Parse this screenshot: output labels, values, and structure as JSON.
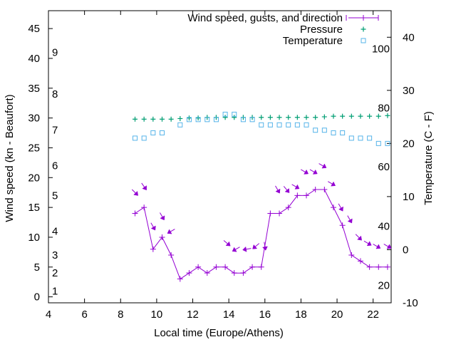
{
  "chart_data": {
    "type": "line",
    "xlabel": "Local time (Europe/Athens)",
    "ylabel": "Wind speed (kn - Beaufort)",
    "y2label": "Temperature (C - F)",
    "xlim": [
      4,
      23
    ],
    "ylim": [
      -1,
      48
    ],
    "y2lim": [
      -10,
      45
    ],
    "x_ticks": [
      4,
      6,
      8,
      10,
      12,
      14,
      16,
      18,
      20,
      22
    ],
    "y_ticks": [
      0,
      5,
      10,
      15,
      20,
      25,
      30,
      35,
      40,
      45
    ],
    "y2_ticks": [
      -10,
      0,
      10,
      20,
      30,
      40
    ],
    "beaufort_labels": [
      {
        "label": "1",
        "kn": 1
      },
      {
        "label": "2",
        "kn": 4
      },
      {
        "label": "3",
        "kn": 7
      },
      {
        "label": "4",
        "kn": 11
      },
      {
        "label": "5",
        "kn": 17
      },
      {
        "label": "6",
        "kn": 22
      },
      {
        "label": "7",
        "kn": 28
      },
      {
        "label": "8",
        "kn": 34
      },
      {
        "label": "9",
        "kn": 41
      }
    ],
    "fahrenheit_labels": [
      {
        "label": "20",
        "c": -6.7
      },
      {
        "label": "40",
        "c": 4.4
      },
      {
        "label": "60",
        "c": 15.6
      },
      {
        "label": "80",
        "c": 26.7
      },
      {
        "label": "100",
        "c": 37.8
      }
    ],
    "legend": [
      "Wind speed, gusts, and direction",
      "Pressure",
      "Temperature"
    ],
    "legend_position": "top-right",
    "grid": false,
    "colors": {
      "wind": "#9400d3",
      "pressure": "#009e73",
      "temperature": "#56b4e9"
    },
    "series": [
      {
        "name": "Wind speed, gusts, and direction",
        "type": "line",
        "axis": "y",
        "x": [
          8.8,
          9.3,
          9.8,
          10.3,
          10.8,
          11.3,
          11.8,
          12.3,
          12.8,
          13.3,
          13.8,
          14.3,
          14.8,
          15.3,
          15.8,
          16.3,
          16.8,
          17.3,
          17.8,
          18.3,
          18.8,
          19.3,
          19.8,
          20.3,
          20.8,
          21.3,
          21.8,
          22.3,
          22.8
        ],
        "values": [
          14,
          15,
          8,
          10,
          7,
          3,
          4,
          5,
          4,
          5,
          5,
          4,
          4,
          5,
          5,
          14,
          14,
          15,
          17,
          17,
          18,
          18,
          15,
          12,
          7,
          6,
          5,
          5,
          5
        ]
      },
      {
        "name": "Wind direction arrows",
        "type": "arrows",
        "axis": "y",
        "x": [
          8.8,
          9.3,
          9.8,
          10.3,
          10.8,
          13.9,
          14.4,
          15.0,
          15.5,
          16.0,
          16.7,
          17.2,
          17.7,
          18.2,
          18.7,
          19.2,
          19.7,
          20.2,
          20.7,
          21.2,
          21.7,
          22.2,
          22.8
        ],
        "values": [
          17.5,
          18.5,
          11.8,
          13.5,
          11,
          9,
          8,
          8,
          8.5,
          8.5,
          18,
          18,
          18.5,
          21,
          21,
          22,
          19,
          15,
          13,
          10,
          9,
          8.5,
          8.5
        ],
        "from_deg": [
          315,
          325,
          330,
          330,
          60,
          310,
          60,
          80,
          50,
          350,
          330,
          320,
          300,
          300,
          300,
          300,
          300,
          330,
          330,
          315,
          300,
          300,
          300
        ]
      },
      {
        "name": "Pressure",
        "type": "scatter",
        "axis": "y",
        "x": [
          8.8,
          9.3,
          9.8,
          10.3,
          10.8,
          11.3,
          11.8,
          12.3,
          12.8,
          13.3,
          13.8,
          14.3,
          14.8,
          15.3,
          15.8,
          16.3,
          16.8,
          17.3,
          17.8,
          18.3,
          18.8,
          19.3,
          19.8,
          20.3,
          20.8,
          21.3,
          21.8,
          22.3,
          22.8
        ],
        "values": [
          29.8,
          29.8,
          29.8,
          29.8,
          29.8,
          29.9,
          30,
          30,
          30.1,
          30.1,
          30.1,
          30.1,
          30.1,
          30.1,
          30.1,
          30.1,
          30.1,
          30.1,
          30.1,
          30.1,
          30.1,
          30.2,
          30.3,
          30.3,
          30.3,
          30.3,
          30.3,
          30.3,
          30.4
        ]
      },
      {
        "name": "Temperature",
        "type": "scatter",
        "axis": "y2",
        "x": [
          8.8,
          9.3,
          9.8,
          10.3,
          11.3,
          11.8,
          12.3,
          12.8,
          13.3,
          13.8,
          14.3,
          14.8,
          15.3,
          15.8,
          16.3,
          16.8,
          17.3,
          17.8,
          18.3,
          18.8,
          19.3,
          19.8,
          20.3,
          20.8,
          21.3,
          21.8,
          22.3,
          22.8
        ],
        "values": [
          21,
          21,
          22,
          22,
          23.5,
          24.5,
          24.5,
          24.5,
          24.5,
          25.5,
          25.5,
          24.5,
          24.5,
          23.5,
          23.5,
          23.5,
          23.5,
          23.5,
          23.5,
          22.5,
          22.5,
          22,
          22,
          21,
          21,
          21,
          20,
          20
        ]
      }
    ]
  }
}
